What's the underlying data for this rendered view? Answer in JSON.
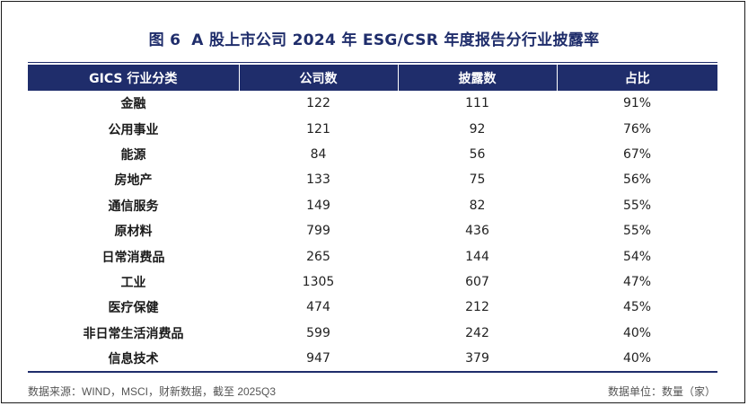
{
  "title": {
    "figure_label": "图 6",
    "text": "A 股上市公司 2024 年 ESG/CSR 年度报告分行业披露率"
  },
  "table": {
    "headers": [
      "GICS 行业分类",
      "公司数",
      "披露数",
      "占比"
    ],
    "rows": [
      [
        "金融",
        "122",
        "111",
        "91%"
      ],
      [
        "公用事业",
        "121",
        "92",
        "76%"
      ],
      [
        "能源",
        "84",
        "56",
        "67%"
      ],
      [
        "房地产",
        "133",
        "75",
        "56%"
      ],
      [
        "通信服务",
        "149",
        "82",
        "55%"
      ],
      [
        "原材料",
        "799",
        "436",
        "55%"
      ],
      [
        "日常消费品",
        "265",
        "144",
        "54%"
      ],
      [
        "工业",
        "1305",
        "607",
        "47%"
      ],
      [
        "医疗保健",
        "474",
        "212",
        "45%"
      ],
      [
        "非日常生活消费品",
        "599",
        "242",
        "40%"
      ],
      [
        "信息技术",
        "947",
        "379",
        "40%"
      ]
    ]
  },
  "footer": {
    "source": "数据来源：WIND，MSCI，财新数据，截至 2025Q3",
    "unit": "数据单位：数量（家）"
  },
  "colors": {
    "accent": "#1f2d6b",
    "header_text": "#ffffff"
  }
}
